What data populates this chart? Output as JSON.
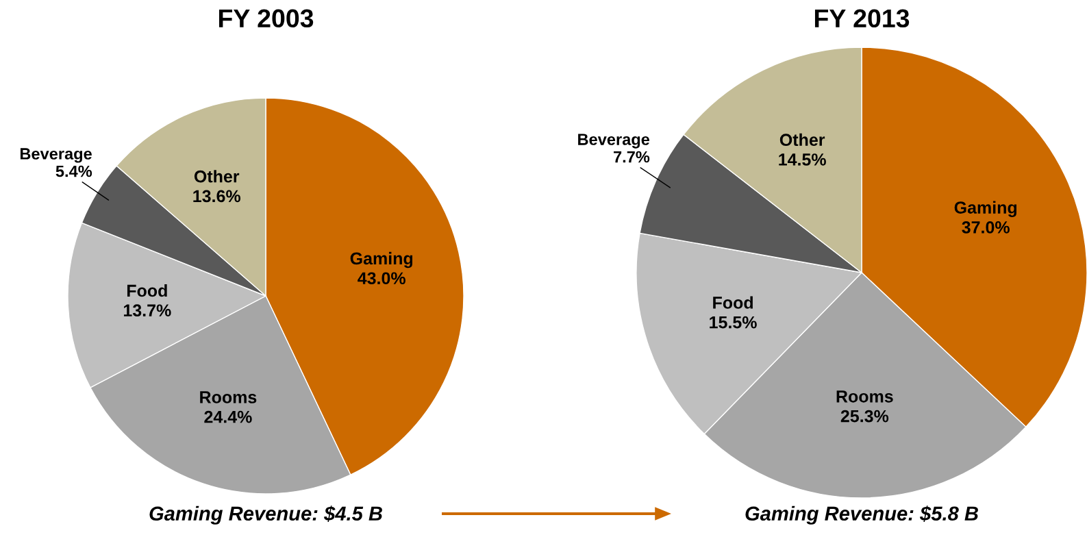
{
  "chart_data": [
    {
      "type": "pie",
      "title": "FY 2003",
      "categories": [
        "Gaming",
        "Rooms",
        "Food",
        "Beverage",
        "Other"
      ],
      "values": [
        43.0,
        24.4,
        13.7,
        5.4,
        13.6
      ],
      "colors": [
        "#cc6a00",
        "#a6a6a6",
        "#bfbfbf",
        "#595959",
        "#c4bd97"
      ],
      "value_labels": [
        "43.0%",
        "24.4%",
        "13.7%",
        "5.4%",
        "13.6%"
      ],
      "annotations": [
        "Gaming Revenue: $4.5 B"
      ]
    },
    {
      "type": "pie",
      "title": "FY 2013",
      "categories": [
        "Gaming",
        "Rooms",
        "Food",
        "Beverage",
        "Other"
      ],
      "values": [
        37.0,
        25.3,
        15.5,
        7.7,
        14.5
      ],
      "colors": [
        "#cc6a00",
        "#a6a6a6",
        "#bfbfbf",
        "#595959",
        "#c4bd97"
      ],
      "value_labels": [
        "37.0%",
        "25.3%",
        "15.5%",
        "7.7%",
        "14.5%"
      ],
      "annotations": [
        "Gaming Revenue: $5.8 B"
      ]
    }
  ]
}
